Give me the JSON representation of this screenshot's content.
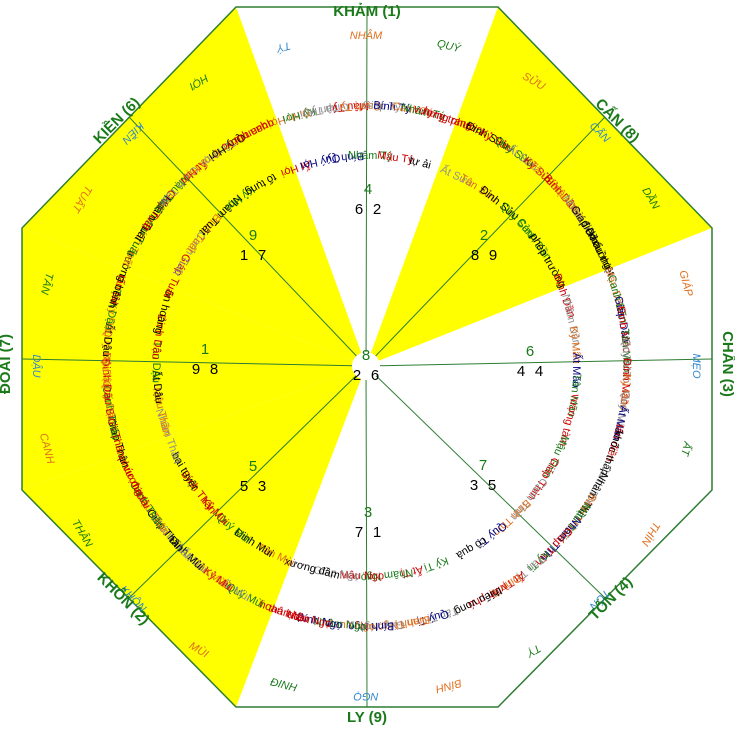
{
  "colors": {
    "yellow": "#ffff00",
    "white": "#ffffff",
    "border": "#2e7d32",
    "green": "#1a7a1a",
    "red": "#cc0000",
    "black": "#000000",
    "navy": "#000080",
    "orange": "#e07020",
    "gray": "#909090",
    "yellowgreen": "#66aa00",
    "pink": "#ee88cc",
    "blue": "#3388cc"
  },
  "palaces": [
    {
      "id": "kham",
      "name": "KHẢM (1)"
    },
    {
      "id": "can8",
      "name": "CẤN (8)"
    },
    {
      "id": "chan",
      "name": "CHẤN (3)"
    },
    {
      "id": "ton",
      "name": "TỐN (4)"
    },
    {
      "id": "ly",
      "name": "LY (9)"
    },
    {
      "id": "khon",
      "name": "KHÔN (2)"
    },
    {
      "id": "doai",
      "name": "ĐOÀI (7)"
    },
    {
      "id": "kien",
      "name": "KIỀN (6)"
    }
  ],
  "center": {
    "top": "8",
    "left": "2",
    "right": "6"
  },
  "numbers": [
    {
      "id": "kham",
      "main": "4",
      "a": "6",
      "b": "2"
    },
    {
      "id": "can8",
      "main": "2",
      "a": "8",
      "b": "9"
    },
    {
      "id": "chan",
      "main": "6",
      "a": "4",
      "b": "4"
    },
    {
      "id": "ton",
      "main": "7",
      "a": "3",
      "b": "5"
    },
    {
      "id": "ly",
      "main": "3",
      "a": "7",
      "b": "1"
    },
    {
      "id": "khon",
      "main": "5",
      "a": "5",
      "b": "3"
    },
    {
      "id": "doai",
      "main": "1",
      "a": "9",
      "b": "8"
    },
    {
      "id": "kien",
      "main": "9",
      "a": "1",
      "b": "7"
    }
  ],
  "labels": [
    {
      "t": "TÝ",
      "c": "blue"
    },
    {
      "t": "NHÂM",
      "c": "orange"
    },
    {
      "t": "QUÝ",
      "c": "green"
    },
    {
      "t": "Ất Hợi",
      "c": "red"
    },
    {
      "t": "Đinh Hợi",
      "c": "orange"
    },
    {
      "t": "Kỷ Hợi",
      "c": "green"
    },
    {
      "t": "Quý Hợi",
      "c": "navy"
    },
    {
      "t": "Tân Hợi",
      "c": "gray"
    },
    {
      "t": "Giáp Tý",
      "c": "gray"
    },
    {
      "t": "Bính Tý",
      "c": "navy"
    },
    {
      "t": "Mậu Tý",
      "c": "red"
    },
    {
      "t": "Canh Tý",
      "c": "orange"
    },
    {
      "t": "Nhâm Tý",
      "c": "green"
    },
    {
      "t": "Giáp Tý",
      "c": "gray"
    },
    {
      "t": "Bính Tý",
      "c": "navy"
    },
    {
      "t": "Mậu Tý",
      "c": "red"
    },
    {
      "t": "Canh Tý",
      "c": "orange"
    },
    {
      "t": "Nhâm Tý",
      "c": "green"
    },
    {
      "t": "tự ải",
      "c": "black"
    },
    {
      "t": "vượng trang",
      "c": "red"
    },
    {
      "t": "hưng phước",
      "c": "red"
    },
    {
      "t": "SỬU",
      "c": "orange"
    },
    {
      "t": "CẤN",
      "c": "blue"
    },
    {
      "t": "DẦN",
      "c": "green"
    },
    {
      "t": "Ất Sửu",
      "c": "gray"
    },
    {
      "t": "Đinh Sửu",
      "c": "black"
    },
    {
      "t": "Kỷ Sửu",
      "c": "red"
    },
    {
      "t": "Tân Sửu",
      "c": "orange"
    },
    {
      "t": "Quý Sửu",
      "c": "green"
    },
    {
      "t": "Ất Sửu",
      "c": "gray"
    },
    {
      "t": "Đinh Sửu",
      "c": "black"
    },
    {
      "t": "Kỷ Sửu",
      "c": "red"
    },
    {
      "t": "Tân Sửu",
      "c": "orange"
    },
    {
      "t": "Quý Sửu",
      "c": "green"
    },
    {
      "t": "Bính Dần",
      "c": "red"
    },
    {
      "t": "Mậu Dần",
      "c": "orange"
    },
    {
      "t": "Canh Dần",
      "c": "green"
    },
    {
      "t": "Nhâm Dần",
      "c": "gray"
    },
    {
      "t": "Giáp Dần",
      "c": "black"
    },
    {
      "t": "phép trường",
      "c": "black"
    },
    {
      "t": "điên cuồng",
      "c": "black"
    },
    {
      "t": "khẩu thiệt",
      "c": "black"
    },
    {
      "t": "GIÁP",
      "c": "orange"
    },
    {
      "t": "MẸO",
      "c": "blue"
    },
    {
      "t": "ẤT",
      "c": "green"
    },
    {
      "t": "Bính Dần",
      "c": "red"
    },
    {
      "t": "Mậu Dần",
      "c": "orange"
    },
    {
      "t": "Canh Dần",
      "c": "green"
    },
    {
      "t": "Nhâm Dần",
      "c": "gray"
    },
    {
      "t": "Giáp Dần",
      "c": "navy"
    },
    {
      "t": "Đinh Mão",
      "c": "red"
    },
    {
      "t": "Kỷ Mão",
      "c": "orange"
    },
    {
      "t": "Tân Mão",
      "c": "green"
    },
    {
      "t": "Quý Mão",
      "c": "gray"
    },
    {
      "t": "Ất Mão",
      "c": "navy"
    },
    {
      "t": "Đinh Mão",
      "c": "red"
    },
    {
      "t": "Kỷ Mão",
      "c": "orange"
    },
    {
      "t": "Tân Mão",
      "c": "green"
    },
    {
      "t": "Quý Mão",
      "c": "gray"
    },
    {
      "t": "Ất Mão",
      "c": "navy"
    },
    {
      "t": "vượng tàm",
      "c": "red"
    },
    {
      "t": "tấn điền",
      "c": "red"
    },
    {
      "t": "khốc thấp",
      "c": "black"
    },
    {
      "t": "THÌN",
      "c": "orange"
    },
    {
      "t": "TỐN",
      "c": "blue"
    },
    {
      "t": "TỴ",
      "c": "green"
    },
    {
      "t": "Mậu Thìn",
      "c": "green"
    },
    {
      "t": "Canh Thìn",
      "c": "gray"
    },
    {
      "t": "Nhâm Thìn",
      "c": "black"
    },
    {
      "t": "Giáp Thìn",
      "c": "red"
    },
    {
      "t": "Bính Thìn",
      "c": "orange"
    },
    {
      "t": "Mậu Thìn",
      "c": "green"
    },
    {
      "t": "Canh Thìn",
      "c": "gray"
    },
    {
      "t": "Nhâm Thìn",
      "c": "navy"
    },
    {
      "t": "Giáp Thìn",
      "c": "red"
    },
    {
      "t": "Bính Thìn",
      "c": "orange"
    },
    {
      "t": "Kỷ Tị",
      "c": "green"
    },
    {
      "t": "Tân Tị",
      "c": "gray"
    },
    {
      "t": "Quý Tị",
      "c": "navy"
    },
    {
      "t": "Ất Tị",
      "c": "red"
    },
    {
      "t": "Đinh Tị",
      "c": "orange"
    },
    {
      "t": "cô quả",
      "c": "black"
    },
    {
      "t": "vinh phú",
      "c": "red"
    },
    {
      "t": "thiếu vong",
      "c": "black"
    },
    {
      "t": "BÍNH",
      "c": "orange"
    },
    {
      "t": "NGỌ",
      "c": "blue"
    },
    {
      "t": "ĐINH",
      "c": "green"
    },
    {
      "t": "Kỷ Tị",
      "c": "green"
    },
    {
      "t": "Tân Tị",
      "c": "gray"
    },
    {
      "t": "Quý Tị",
      "c": "navy"
    },
    {
      "t": "Ất Tị",
      "c": "red"
    },
    {
      "t": "Đinh Tị",
      "c": "orange"
    },
    {
      "t": "Canh Ngọ",
      "c": "orange"
    },
    {
      "t": "Nhâm Ngọ",
      "c": "green"
    },
    {
      "t": "Giáp Ngọ",
      "c": "gray"
    },
    {
      "t": "Bính Ngọ",
      "c": "navy"
    },
    {
      "t": "Mậu Ngọ",
      "c": "red"
    },
    {
      "t": "Canh Ngọ",
      "c": "orange"
    },
    {
      "t": "Nhâm Ngọ",
      "c": "green"
    },
    {
      "t": "Giáp Ngọ",
      "c": "gray"
    },
    {
      "t": "Bính Ngọ",
      "c": "navy"
    },
    {
      "t": "Mậu Ngọ",
      "c": "red"
    },
    {
      "t": "xương đầm",
      "c": "black"
    },
    {
      "t": "thân hôn",
      "c": "red"
    },
    {
      "t": "hoan lạc",
      "c": "red"
    },
    {
      "t": "MÙI",
      "c": "orange"
    },
    {
      "t": "KHÔN",
      "c": "blue"
    },
    {
      "t": "THÂN",
      "c": "green"
    },
    {
      "t": "Tân Mùi",
      "c": "orange"
    },
    {
      "t": "Quý Mùi",
      "c": "green"
    },
    {
      "t": "Ất Mùi",
      "c": "gray"
    },
    {
      "t": "Đinh Mùi",
      "c": "black"
    },
    {
      "t": "Kỷ Mùi",
      "c": "red"
    },
    {
      "t": "Tân Mùi",
      "c": "orange"
    },
    {
      "t": "Quý Mùi",
      "c": "green"
    },
    {
      "t": "Ất Mùi",
      "c": "gray"
    },
    {
      "t": "Đinh Mùi",
      "c": "black"
    },
    {
      "t": "Kỷ Mùi",
      "c": "red"
    },
    {
      "t": "Nhâm Thân",
      "c": "gray"
    },
    {
      "t": "Giáp Thân",
      "c": "black"
    },
    {
      "t": "Bính Thân",
      "c": "red"
    },
    {
      "t": "Mậu Thân",
      "c": "orange"
    },
    {
      "t": "Canh Thân",
      "c": "green"
    },
    {
      "t": "bại tuyệt",
      "c": "black"
    },
    {
      "t": "vượng tài",
      "c": "red"
    },
    {
      "t": "phúc đức",
      "c": "red"
    },
    {
      "t": "CANH",
      "c": "orange"
    },
    {
      "t": "DẬU",
      "c": "blue"
    },
    {
      "t": "TÂN",
      "c": "green"
    },
    {
      "t": "Nhâm Thân",
      "c": "gray"
    },
    {
      "t": "Giáp Thân",
      "c": "black"
    },
    {
      "t": "Bính Thân",
      "c": "red"
    },
    {
      "t": "Mậu Thân",
      "c": "orange"
    },
    {
      "t": "Canh Thân",
      "c": "green"
    },
    {
      "t": "Quý Dậu",
      "c": "orange"
    },
    {
      "t": "Ất Dậu",
      "c": "black"
    },
    {
      "t": "Đinh Dậu",
      "c": "red"
    },
    {
      "t": "Kỷ Dậu",
      "c": "orange"
    },
    {
      "t": "Tân Dậu",
      "c": "green"
    },
    {
      "t": "Quý Dậu",
      "c": "orange"
    },
    {
      "t": "Ất Dậu",
      "c": "black"
    },
    {
      "t": "Đinh Dậu",
      "c": "red"
    },
    {
      "t": "Kỷ Dậu",
      "c": "orange"
    },
    {
      "t": "Tân Dậu",
      "c": "green"
    },
    {
      "t": "ôn hoàng",
      "c": "black"
    },
    {
      "t": "tấn tài",
      "c": "red"
    },
    {
      "t": "trường bệnh",
      "c": "black"
    },
    {
      "t": "TUẤT",
      "c": "orange"
    },
    {
      "t": "KIỀN",
      "c": "blue"
    },
    {
      "t": "HỢI",
      "c": "green"
    },
    {
      "t": "Giáp Tuất",
      "c": "red"
    },
    {
      "t": "Bính Tuất",
      "c": "orange"
    },
    {
      "t": "Mậu Tuất",
      "c": "green"
    },
    {
      "t": "Canh Tuất",
      "c": "gray"
    },
    {
      "t": "Nhâm Tuất",
      "c": "black"
    },
    {
      "t": "Giáp Tuất",
      "c": "red"
    },
    {
      "t": "Bính Tuất",
      "c": "orange"
    },
    {
      "t": "Mậu Tuất",
      "c": "green"
    },
    {
      "t": "Canh Tuất",
      "c": "gray"
    },
    {
      "t": "Nhâm Tuất",
      "c": "black"
    },
    {
      "t": "Ất Hợi",
      "c": "red"
    },
    {
      "t": "Đinh Hợi",
      "c": "orange"
    },
    {
      "t": "Kỷ Hợi",
      "c": "green"
    },
    {
      "t": "Tân Hợi",
      "c": "gray"
    },
    {
      "t": "Quý Hợi",
      "c": "black"
    },
    {
      "t": "tố tụng",
      "c": "black"
    },
    {
      "t": "quan tước",
      "c": "red"
    },
    {
      "t": "quan quí",
      "c": "red"
    }
  ]
}
